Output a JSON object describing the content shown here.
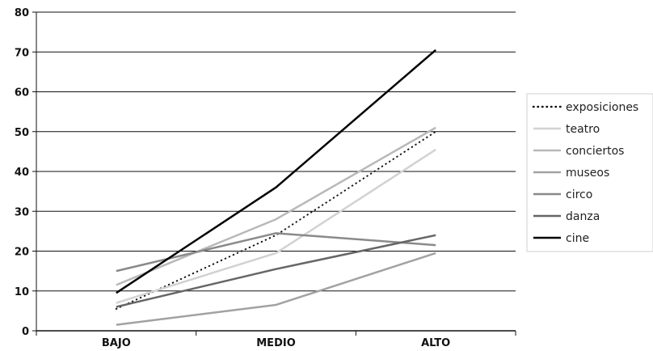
{
  "chart_data": {
    "type": "line",
    "categories": [
      "BAJO",
      "MEDIO",
      "ALTO"
    ],
    "ylim": [
      0,
      80
    ],
    "yticks": [
      0,
      10,
      20,
      30,
      40,
      50,
      60,
      70,
      80
    ],
    "grid": true,
    "legend_position": "right",
    "series": [
      {
        "name": "exposiciones",
        "values": [
          5.5,
          24,
          50
        ],
        "color": "#111111",
        "style": "dotted"
      },
      {
        "name": "teatro",
        "values": [
          7,
          19.5,
          45.5
        ],
        "color": "#d2d2d2",
        "style": "solid"
      },
      {
        "name": "conciertos",
        "values": [
          11.5,
          28,
          51
        ],
        "color": "#b8b8b8",
        "style": "solid"
      },
      {
        "name": "museos",
        "values": [
          1.5,
          6.5,
          19.5
        ],
        "color": "#a2a2a2",
        "style": "solid"
      },
      {
        "name": "circo",
        "values": [
          15,
          24.5,
          21.5
        ],
        "color": "#8a8a8a",
        "style": "solid"
      },
      {
        "name": "danza",
        "values": [
          6,
          15.5,
          24
        ],
        "color": "#666666",
        "style": "solid"
      },
      {
        "name": "cine",
        "values": [
          9.5,
          36,
          70.5
        ],
        "color": "#000000",
        "style": "solid"
      }
    ]
  }
}
